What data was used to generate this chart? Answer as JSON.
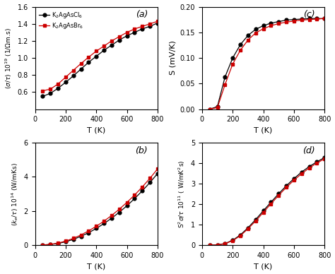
{
  "T": [
    50,
    100,
    150,
    200,
    250,
    300,
    350,
    400,
    450,
    500,
    550,
    600,
    650,
    700,
    750,
    800
  ],
  "sigma_black": [
    0.55,
    0.585,
    0.645,
    0.715,
    0.79,
    0.87,
    0.95,
    1.02,
    1.09,
    1.15,
    1.21,
    1.26,
    1.3,
    1.34,
    1.37,
    1.41
  ],
  "sigma_red": [
    0.615,
    0.635,
    0.695,
    0.775,
    0.855,
    0.935,
    1.01,
    1.08,
    1.14,
    1.2,
    1.25,
    1.3,
    1.34,
    1.37,
    1.4,
    1.43
  ],
  "S_black": [
    0.0,
    0.005,
    0.063,
    0.1,
    0.126,
    0.144,
    0.156,
    0.163,
    0.168,
    0.171,
    0.174,
    0.175,
    0.176,
    0.177,
    0.177,
    0.177
  ],
  "S_red": [
    0.0,
    0.003,
    0.048,
    0.088,
    0.115,
    0.135,
    0.149,
    0.157,
    0.163,
    0.167,
    0.17,
    0.172,
    0.174,
    0.175,
    0.176,
    0.177
  ],
  "ke_black": [
    0.01,
    0.04,
    0.1,
    0.2,
    0.34,
    0.52,
    0.73,
    0.98,
    1.27,
    1.58,
    1.93,
    2.31,
    2.73,
    3.18,
    3.67,
    4.2
  ],
  "ke_red": [
    0.01,
    0.05,
    0.12,
    0.24,
    0.4,
    0.6,
    0.84,
    1.11,
    1.41,
    1.74,
    2.11,
    2.51,
    2.94,
    3.41,
    3.92,
    4.47
  ],
  "S2s_black": [
    0.0,
    0.01,
    0.08,
    0.24,
    0.5,
    0.85,
    1.25,
    1.68,
    2.1,
    2.51,
    2.9,
    3.25,
    3.57,
    3.84,
    4.07,
    4.28
  ],
  "S2s_red": [
    0.0,
    0.01,
    0.07,
    0.22,
    0.46,
    0.8,
    1.18,
    1.6,
    2.02,
    2.43,
    2.82,
    3.17,
    3.49,
    3.77,
    4.01,
    4.22
  ],
  "color_black": "#000000",
  "color_red": "#cc0000",
  "label_black": "K$_2$AgAsCl$_6$",
  "label_red": "K$_2$AgAsBr$_6$",
  "xlabel": "T (K)",
  "ylabel_a": "($\\sigma$/$\\tau$) 10$^{19}$ (1/$\\Omega$m.s)",
  "ylabel_b": "($k_e$/$\\tau$) 10$^{14}$ (W/mKs)",
  "ylabel_c": "S (mV/K)",
  "ylabel_d": "S$^2\\sigma$/$\\tau$ 10$^{11}$ ( W/mK$^2$s)",
  "label_a": "(a)",
  "label_b": "(b)",
  "label_c": "(c)",
  "label_d": "(d)",
  "xlim": [
    0,
    800
  ],
  "ylim_a": [
    0.4,
    1.6
  ],
  "ylim_b": [
    0,
    6
  ],
  "ylim_c": [
    0,
    0.2
  ],
  "ylim_d": [
    0,
    5
  ],
  "yticks_a": [
    0.6,
    0.8,
    1.0,
    1.2,
    1.4,
    1.6
  ],
  "yticks_b": [
    0,
    2,
    4,
    6
  ],
  "yticks_c": [
    0,
    0.05,
    0.1,
    0.15,
    0.2
  ],
  "yticks_d": [
    0,
    1,
    2,
    3,
    4,
    5
  ],
  "xticks": [
    0,
    200,
    400,
    600,
    800
  ]
}
